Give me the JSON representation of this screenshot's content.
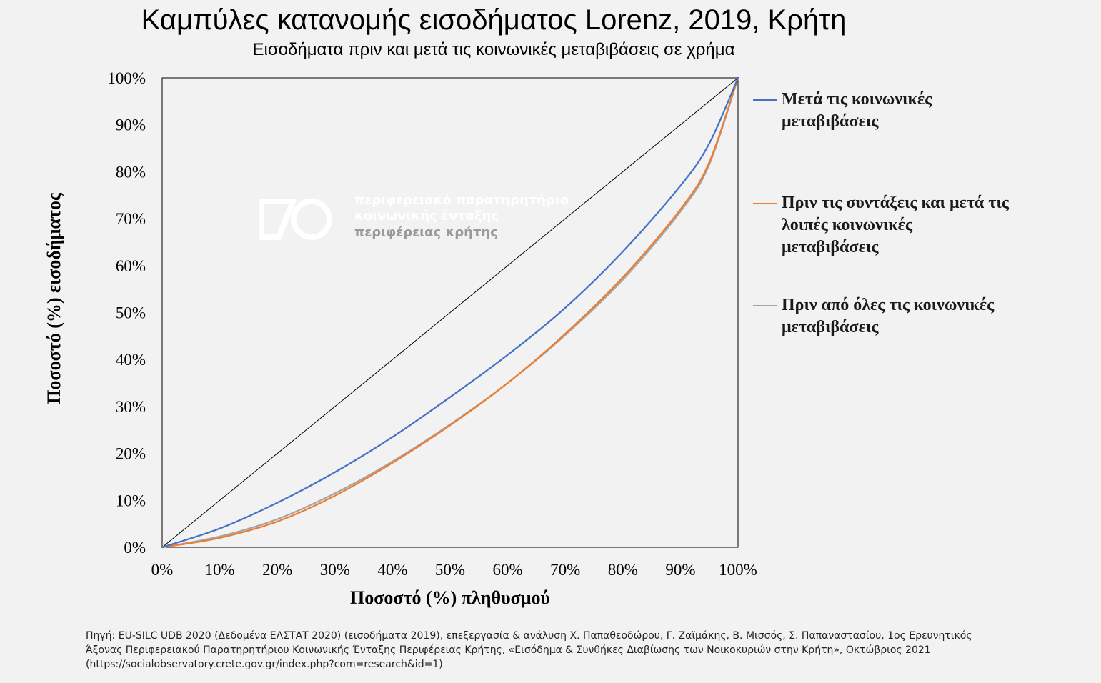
{
  "chart_data": {
    "type": "line",
    "title": "Καμπύλες κατανομής εισοδήματος Lorenz, 2019, Κρήτη",
    "subtitle": "Εισοδήματα πριν και μετά τις κοινωνικές μεταβιβάσεις σε χρήμα",
    "xlabel": "Ποσοστό (%) πληθυσμού",
    "ylabel": "Ποσοστό (%) εισοδήματος",
    "x_ticks": [
      "0%",
      "10%",
      "20%",
      "30%",
      "40%",
      "50%",
      "60%",
      "70%",
      "80%",
      "90%",
      "100%"
    ],
    "y_ticks": [
      "0%",
      "10%",
      "20%",
      "30%",
      "40%",
      "50%",
      "60%",
      "70%",
      "80%",
      "90%",
      "100%"
    ],
    "xlim": [
      0,
      100
    ],
    "ylim": [
      0,
      100
    ],
    "grid": false,
    "legend_position": "right",
    "x": [
      0,
      10,
      20,
      30,
      40,
      50,
      60,
      70,
      80,
      90,
      95,
      100
    ],
    "series": [
      {
        "name": "Μετά τις κοινωνικές μεταβιβάσεις",
        "color": "#4472c4",
        "values": [
          0,
          4,
          9.5,
          16,
          23.5,
          32,
          41,
          51,
          63,
          77,
          86,
          100
        ]
      },
      {
        "name": "Πριν τις συντάξεις και μετά τις λοιπές κοινωνικές μεταβιβάσεις",
        "color": "#ed7d31",
        "values": [
          0,
          2,
          5.5,
          11,
          18,
          26,
          35,
          45.5,
          57.5,
          72,
          82,
          100
        ]
      },
      {
        "name": "Πριν από όλες τις κοινωνικές μεταβιβάσεις",
        "color": "#a5a5a5",
        "values": [
          0,
          2.3,
          6,
          11.5,
          18.3,
          26.2,
          35,
          45.2,
          57,
          71.5,
          81.5,
          100
        ]
      },
      {
        "color": "#000000",
        "values": [
          0,
          10,
          20,
          30,
          40,
          50,
          60,
          70,
          80,
          90,
          95,
          100
        ]
      }
    ]
  },
  "source_text": "Πηγή: EU-SILC UDB 2020 (Δεδομένα ΕΛΣΤΑΤ 2020) (εισοδήματα 2019), επεξεργασία & ανάλυση Χ. Παπαθεοδώρου, Γ. Ζαϊμάκης, Β. Μισσός, Σ. Παπαναστασίου, 1ος Ερευνητικός Άξονας Περιφερειακού Παρατηρητήριου Κοινωνικής Ένταξης Περιφέρειας Κρήτης, «Εισόδημα & Συνθήκες Διαβίωσης των Νοικοκυριών στην Κρήτη», Οκτώβριος 2021 (https://socialobservatory.crete.gov.gr/index.php?com=research&id=1)",
  "watermark": {
    "lines": [
      "περιφερειακό παρατηρητήριο",
      "κοινωνικής ένταξης",
      "περιφέρειας κρήτης"
    ],
    "colors": [
      "#ffffff",
      "#ffffff",
      "#9a9a9a"
    ]
  }
}
